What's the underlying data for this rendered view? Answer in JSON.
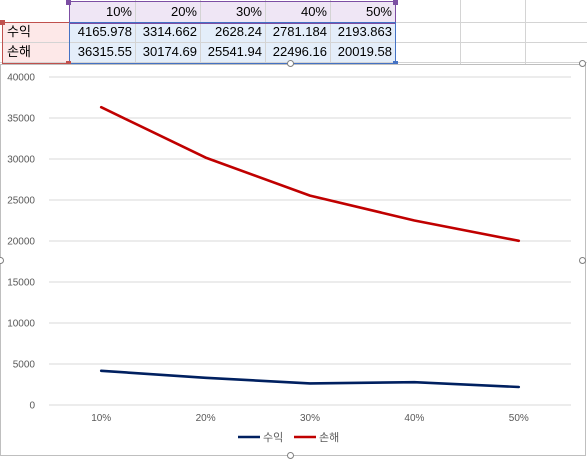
{
  "sheet": {
    "header_row": [
      "10%",
      "20%",
      "30%",
      "40%",
      "50%"
    ],
    "rows": [
      {
        "label": "수익",
        "values": [
          "4165.978",
          "3314.662",
          "2628.24",
          "2781.184",
          "2193.863"
        ]
      },
      {
        "label": "손해",
        "values": [
          "36315.55",
          "30174.69",
          "25541.94",
          "22496.16",
          "20019.58"
        ]
      }
    ]
  },
  "chart_data": {
    "type": "line",
    "categories": [
      "10%",
      "20%",
      "30%",
      "40%",
      "50%"
    ],
    "series": [
      {
        "name": "수익",
        "color": "#002060",
        "values": [
          4165.978,
          3314.662,
          2628.24,
          2781.184,
          2193.863
        ]
      },
      {
        "name": "손해",
        "color": "#c00000",
        "values": [
          36315.55,
          30174.69,
          25541.94,
          22496.16,
          20019.58
        ]
      }
    ],
    "ylim": [
      0,
      40000
    ],
    "yticks": [
      0,
      5000,
      10000,
      15000,
      20000,
      25000,
      30000,
      35000,
      40000
    ],
    "grid": true,
    "legend": "bottom"
  }
}
